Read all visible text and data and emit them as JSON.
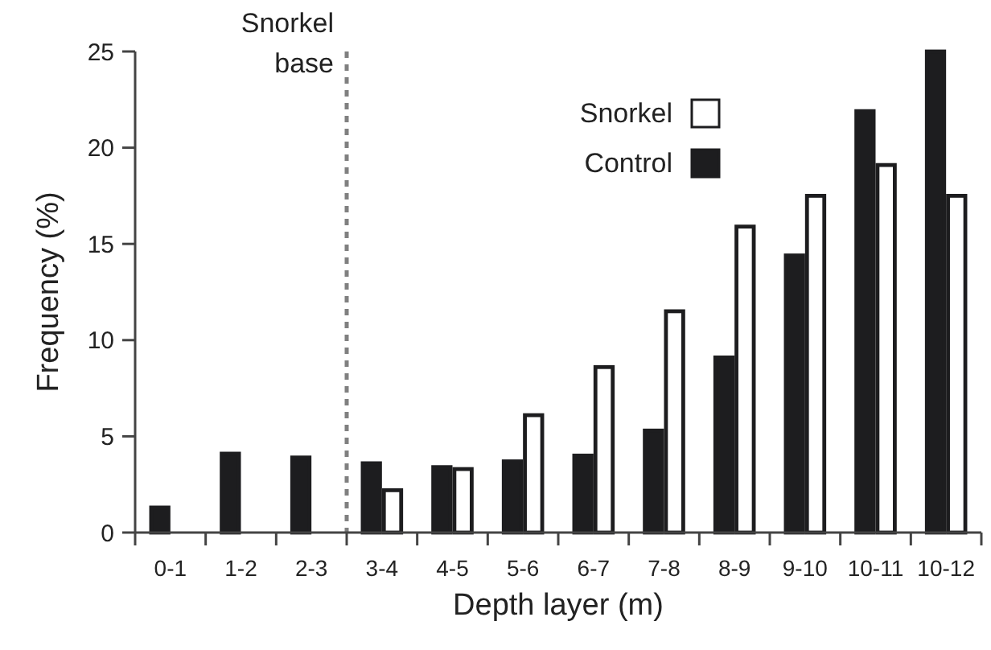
{
  "chart_data": {
    "type": "bar",
    "xlabel": "Depth layer (m)",
    "ylabel": "Frequency (%)",
    "categories": [
      "0-1",
      "1-2",
      "2-3",
      "3-4",
      "4-5",
      "5-6",
      "6-7",
      "7-8",
      "8-9",
      "9-10",
      "10-11",
      "10-12"
    ],
    "series": [
      {
        "name": "Control",
        "color": "#1d1d1f",
        "values": [
          1.3,
          4.1,
          3.9,
          3.6,
          3.4,
          3.7,
          4.0,
          5.3,
          9.1,
          14.4,
          21.9,
          25
        ]
      },
      {
        "name": "Snorkel",
        "color": "#ffffff",
        "values": [
          null,
          null,
          null,
          2.2,
          3.3,
          6.1,
          8.6,
          11.5,
          15.9,
          17.5,
          19.1,
          17.5
        ]
      }
    ],
    "ylim": [
      0,
      25
    ],
    "yticks": [
      0,
      5,
      10,
      15,
      20,
      25
    ],
    "grid": false,
    "legend": "top right",
    "annotations": [
      "Snorkel base"
    ]
  }
}
